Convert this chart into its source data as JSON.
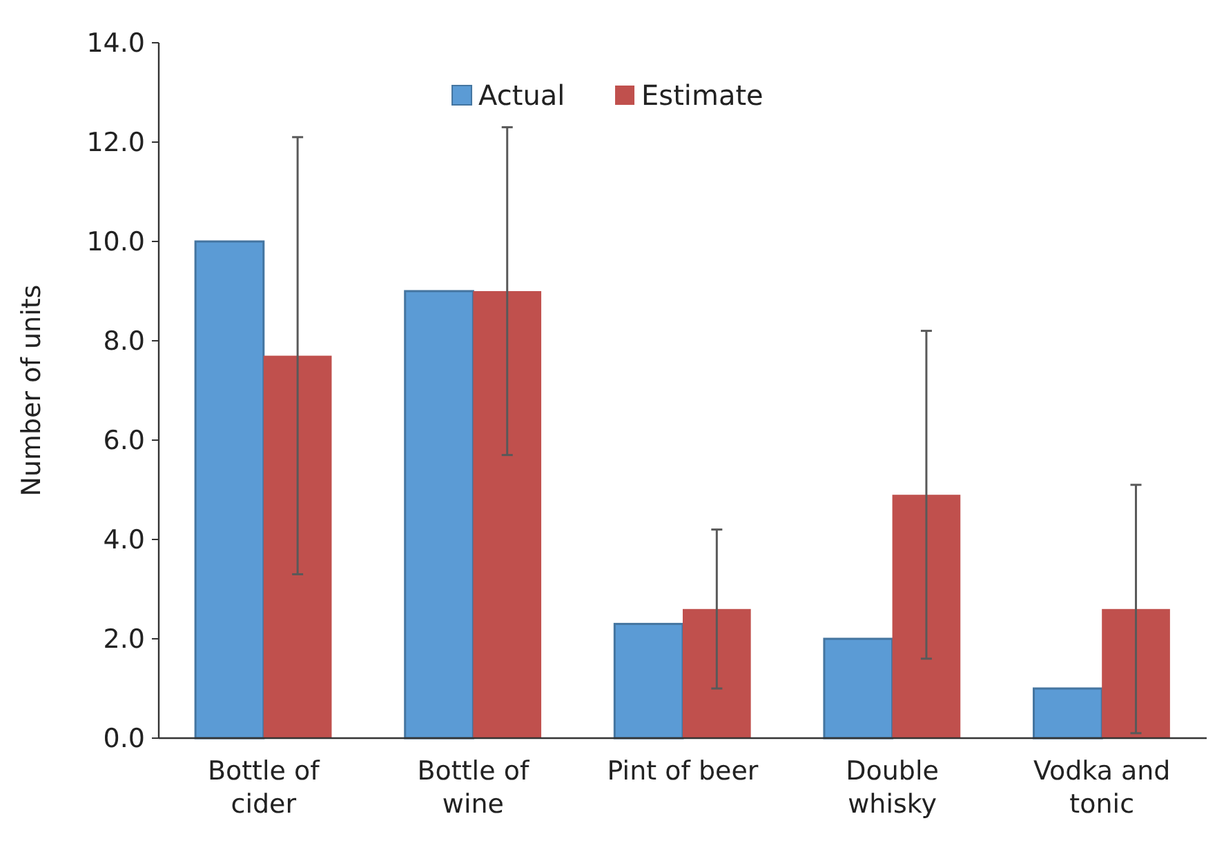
{
  "chart_data": {
    "type": "bar",
    "ylabel": "Number of units",
    "categories": [
      "Bottle of cider",
      "Bottle of wine",
      "Pint of beer",
      "Double whisky",
      "Vodka and tonic"
    ],
    "series": [
      {
        "name": "Actual",
        "color": "#5b9bd5",
        "values": [
          10.0,
          9.0,
          2.3,
          2.0,
          1.0
        ]
      },
      {
        "name": "Estimate",
        "color": "#c0504d",
        "values": [
          7.7,
          9.0,
          2.6,
          4.9,
          2.6
        ],
        "errors": [
          4.4,
          3.3,
          1.6,
          3.3,
          2.5
        ]
      }
    ],
    "ylim": [
      0,
      14
    ],
    "yticks": [
      {
        "value": 0,
        "label": "0.0"
      },
      {
        "value": 2,
        "label": "2.0"
      },
      {
        "value": 4,
        "label": "4.0"
      },
      {
        "value": 6,
        "label": "6.0"
      },
      {
        "value": 8,
        "label": "8.0"
      },
      {
        "value": 10,
        "label": "10.0"
      },
      {
        "value": 12,
        "label": "12.0"
      },
      {
        "value": 14,
        "label": "14.0"
      }
    ],
    "grid": false,
    "legend": "top"
  }
}
